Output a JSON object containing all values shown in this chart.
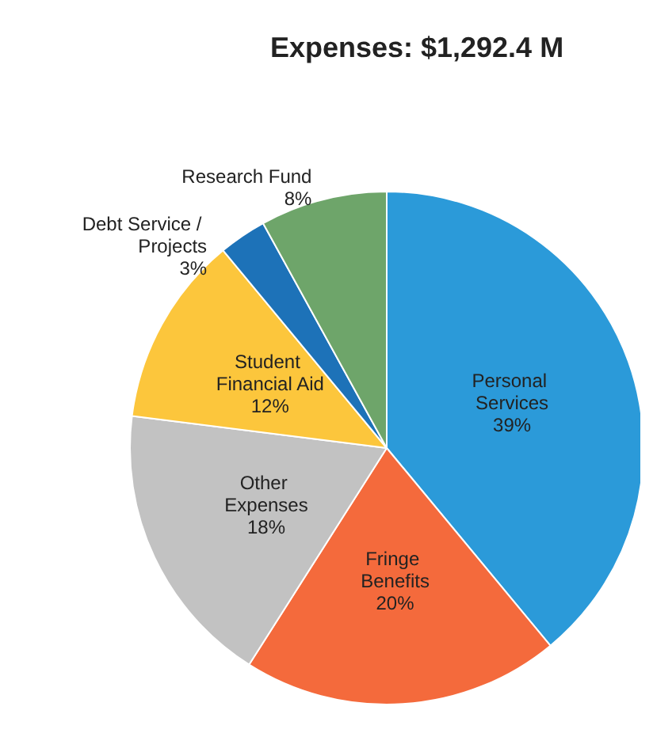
{
  "chart_data": {
    "type": "pie",
    "title": "Expenses: $1,292.4 M",
    "categories": [
      "Personal Services",
      "Fringe Benefits",
      "Other Expenses",
      "Student Financial Aid",
      "Debt Service / Projects",
      "Research Fund"
    ],
    "values": [
      39,
      20,
      18,
      12,
      3,
      8
    ],
    "colors": [
      "#2b9ad9",
      "#f46a3c",
      "#c2c2c2",
      "#fcc63c",
      "#1d72b8",
      "#6ea56a"
    ],
    "value_labels": [
      "39%",
      "20%",
      "18%",
      "12%",
      "3%",
      "8%"
    ],
    "legend": false
  }
}
